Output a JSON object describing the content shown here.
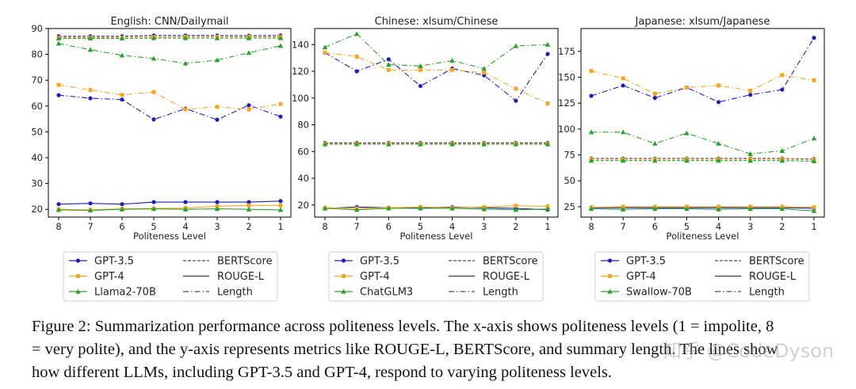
{
  "colors": {
    "gpt35": "#1f1fb4",
    "gpt4": "#f5a623",
    "third": "#2ca02c"
  },
  "chart_data": [
    {
      "type": "line",
      "title": "English: CNN/Dailymail",
      "xlabel": "Politeness Level",
      "ylabel": "",
      "x": [
        8,
        7,
        6,
        5,
        4,
        3,
        2,
        1
      ],
      "ylim": [
        17,
        90
      ],
      "yticks": [
        20,
        30,
        40,
        50,
        60,
        70,
        80,
        90
      ],
      "models": [
        "GPT-3.5",
        "GPT-4",
        "Llama2-70B"
      ],
      "metrics": [
        "BERTScore",
        "ROUGE-L",
        "Length"
      ],
      "series": [
        {
          "name": "GPT-3.5",
          "metric": "BERTScore",
          "values": [
            87,
            87,
            87,
            87.3,
            87.3,
            87.3,
            87.2,
            87.3
          ]
        },
        {
          "name": "GPT-4",
          "metric": "BERTScore",
          "values": [
            86.5,
            86.5,
            86.5,
            86.7,
            86.8,
            86.8,
            86.8,
            86.8
          ]
        },
        {
          "name": "Llama2-70B",
          "metric": "BERTScore",
          "values": [
            86.2,
            86.2,
            86.2,
            86.3,
            86.3,
            86.3,
            86.3,
            86.3
          ]
        },
        {
          "name": "GPT-3.5",
          "metric": "ROUGE-L",
          "values": [
            22,
            22.3,
            22,
            22.8,
            22.8,
            22.8,
            22.8,
            23.2
          ]
        },
        {
          "name": "GPT-4",
          "metric": "ROUGE-L",
          "values": [
            20,
            19.8,
            20.2,
            20.3,
            20.5,
            21.2,
            21.5,
            21.5
          ]
        },
        {
          "name": "Llama2-70B",
          "metric": "ROUGE-L",
          "values": [
            19.8,
            19.6,
            20,
            20.2,
            20,
            20.2,
            20,
            19.8
          ]
        },
        {
          "name": "GPT-3.5",
          "metric": "Length",
          "values": [
            64.2,
            63,
            62.5,
            54.8,
            59,
            54.7,
            60.3,
            55.9
          ]
        },
        {
          "name": "GPT-4",
          "metric": "Length",
          "values": [
            68.2,
            66.2,
            64.3,
            65.4,
            58.7,
            59.7,
            58.7,
            60.8
          ]
        },
        {
          "name": "Llama2-70B",
          "metric": "Length",
          "values": [
            84.2,
            81.8,
            79.6,
            78.4,
            76.5,
            77.8,
            80.6,
            83.3
          ]
        }
      ]
    },
    {
      "type": "line",
      "title": "Chinese: xlsum/Chinese",
      "xlabel": "Politeness Level",
      "ylabel": "",
      "x": [
        8,
        7,
        6,
        5,
        4,
        3,
        2,
        1
      ],
      "ylim": [
        11,
        152
      ],
      "yticks": [
        20,
        40,
        60,
        80,
        100,
        120,
        140
      ],
      "models": [
        "GPT-3.5",
        "GPT-4",
        "ChatGLM3"
      ],
      "metrics": [
        "BERTScore",
        "ROUGE-L",
        "Length"
      ],
      "series": [
        {
          "name": "GPT-3.5",
          "metric": "BERTScore",
          "values": [
            66.5,
            66.5,
            66.5,
            66.5,
            66.5,
            66.5,
            66.5,
            66.5
          ]
        },
        {
          "name": "GPT-4",
          "metric": "BERTScore",
          "values": [
            66,
            66,
            66,
            66,
            66,
            66,
            66,
            66
          ]
        },
        {
          "name": "ChatGLM3",
          "metric": "BERTScore",
          "values": [
            65.5,
            65.5,
            65.5,
            65.5,
            65.5,
            65.5,
            65.5,
            65.5
          ]
        },
        {
          "name": "GPT-3.5",
          "metric": "ROUGE-L",
          "values": [
            17.5,
            18.5,
            18,
            18,
            18.5,
            18,
            17.5,
            16.5
          ]
        },
        {
          "name": "GPT-4",
          "metric": "ROUGE-L",
          "values": [
            18,
            17.5,
            18,
            18.5,
            18,
            18.5,
            19.5,
            19
          ]
        },
        {
          "name": "ChatGLM3",
          "metric": "ROUGE-L",
          "values": [
            17.5,
            16.5,
            17.5,
            17.5,
            17.5,
            17,
            16.5,
            17
          ]
        },
        {
          "name": "GPT-3.5",
          "metric": "Length",
          "values": [
            134,
            120,
            129,
            109,
            122,
            117,
            98,
            133
          ]
        },
        {
          "name": "GPT-4",
          "metric": "Length",
          "values": [
            134,
            131,
            121,
            121,
            121,
            119,
            107,
            96
          ]
        },
        {
          "name": "ChatGLM3",
          "metric": "Length",
          "values": [
            138,
            148,
            125,
            124,
            128,
            122,
            139,
            140
          ]
        }
      ]
    },
    {
      "type": "line",
      "title": "Japanese: xlsum/Japanese",
      "xlabel": "Politeness Level",
      "ylabel": "",
      "x": [
        8,
        7,
        6,
        5,
        4,
        3,
        2,
        1
      ],
      "ylim": [
        15,
        197
      ],
      "yticks": [
        25,
        50,
        75,
        100,
        125,
        150,
        175
      ],
      "models": [
        "GPT-3.5",
        "GPT-4",
        "Swallow-70B"
      ],
      "metrics": [
        "BERTScore",
        "ROUGE-L",
        "Length"
      ],
      "series": [
        {
          "name": "GPT-3.5",
          "metric": "BERTScore",
          "values": [
            71.5,
            71.5,
            71.5,
            71.5,
            71.5,
            71.5,
            71.5,
            71
          ]
        },
        {
          "name": "GPT-4",
          "metric": "BERTScore",
          "values": [
            71,
            71,
            71,
            71,
            71,
            71,
            71,
            70.5
          ]
        },
        {
          "name": "Swallow-70B",
          "metric": "BERTScore",
          "values": [
            69.5,
            69.5,
            69.5,
            69.5,
            69.5,
            69.5,
            69.5,
            69
          ]
        },
        {
          "name": "GPT-3.5",
          "metric": "ROUGE-L",
          "values": [
            24,
            24,
            24,
            24,
            24,
            24,
            24,
            23.5
          ]
        },
        {
          "name": "GPT-4",
          "metric": "ROUGE-L",
          "values": [
            24.5,
            25,
            25,
            25,
            25,
            25,
            25,
            24.5
          ]
        },
        {
          "name": "Swallow-70B",
          "metric": "ROUGE-L",
          "values": [
            23,
            22.5,
            23,
            23,
            22.5,
            23,
            23,
            21
          ]
        },
        {
          "name": "GPT-3.5",
          "metric": "Length",
          "values": [
            132,
            142,
            130,
            140,
            126,
            133,
            138,
            188
          ]
        },
        {
          "name": "GPT-4",
          "metric": "Length",
          "values": [
            156,
            149,
            134,
            140,
            142,
            137,
            152,
            147
          ]
        },
        {
          "name": "Swallow-70B",
          "metric": "Length",
          "values": [
            97,
            97,
            86,
            96,
            86,
            76,
            79,
            91
          ]
        }
      ]
    }
  ],
  "caption": {
    "line1": "Figure 2: Summarization performance across politeness levels. The x-axis shows politeness levels (1 = impolite, 8",
    "line2": "= very polite), and the y-axis represents metrics like ROUGE-L, BERTScore, and summary length. The lines show",
    "line3": "how different LLMs, including GPT-3.5 and GPT-4, respond to varying politeness levels."
  },
  "watermark": "知乎 @CodeDyson"
}
